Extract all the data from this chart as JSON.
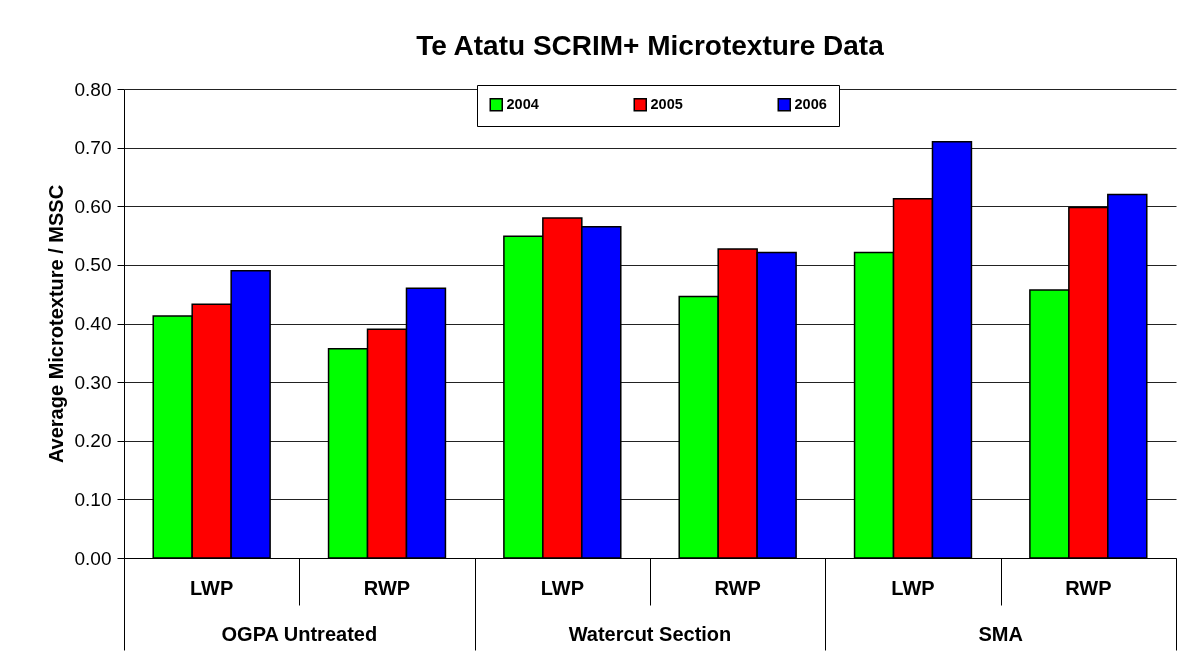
{
  "chart_data": {
    "type": "bar",
    "title": "Te Atatu SCRIM+ Microtexture Data",
    "ylabel": "Average Microtexture / MSSC",
    "categories": [
      "LWP",
      "RWP",
      "LWP",
      "RWP",
      "LWP",
      "RWP"
    ],
    "annotations": [
      "OGPA Untreated",
      "Watercut Section",
      "SMA"
    ],
    "series": [
      {
        "name": "2004",
        "color": "#00ff00",
        "values": [
          0.413,
          0.357,
          0.549,
          0.446,
          0.521,
          0.457
        ]
      },
      {
        "name": "2005",
        "color": "#ff0000",
        "values": [
          0.433,
          0.39,
          0.58,
          0.527,
          0.613,
          0.598
        ]
      },
      {
        "name": "2006",
        "color": "#0000ff",
        "values": [
          0.49,
          0.46,
          0.565,
          0.521,
          0.71,
          0.62
        ]
      }
    ],
    "ylim": [
      0,
      0.8
    ],
    "yticks": [
      {
        "value": 0,
        "label": "0.00"
      },
      {
        "value": 0.1,
        "label": "0.10"
      },
      {
        "value": 0.2,
        "label": "0.20"
      },
      {
        "value": 0.3,
        "label": "0.30"
      },
      {
        "value": 0.4,
        "label": "0.40"
      },
      {
        "value": 0.5,
        "label": "0.50"
      },
      {
        "value": 0.6,
        "label": "0.60"
      },
      {
        "value": 0.7,
        "label": "0.70"
      },
      {
        "value": 0.8,
        "label": "0.80"
      }
    ],
    "grid": "y",
    "legend": "top"
  }
}
